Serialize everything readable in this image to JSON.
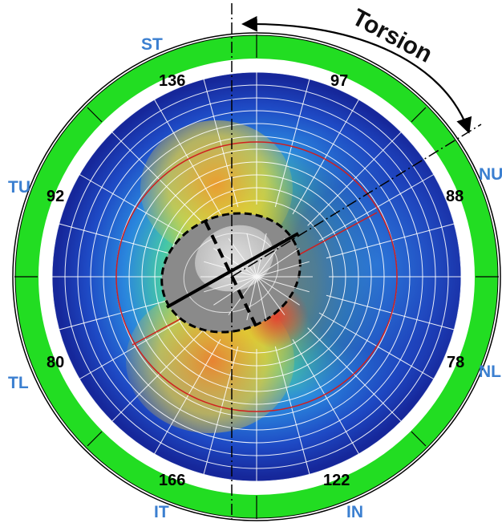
{
  "annotation": {
    "label": "Torsion"
  },
  "quadrants": [
    {
      "id": "ST",
      "label": "ST",
      "value": "136"
    },
    {
      "id": "TU",
      "label": "TU",
      "value": "92"
    },
    {
      "id": "TL",
      "label": "TL",
      "value": "80"
    },
    {
      "id": "IT",
      "label": "IT",
      "value": "166"
    },
    {
      "id": "IN",
      "label": "IN",
      "value": "122"
    },
    {
      "id": "NL",
      "label": "NL",
      "value": "78"
    },
    {
      "id": "NU",
      "label": "NU",
      "value": "88"
    },
    {
      "id": "SN",
      "label": "",
      "value": "97"
    }
  ],
  "colors": {
    "outer_ring": "#22dd22",
    "map_low": "#1a2fb0",
    "map_mid": "#2ea0e6",
    "map_green": "#5ccf5c",
    "map_yellow": "#f0e030",
    "map_orange": "#f39a2a",
    "map_red": "#e83e2e",
    "disc": "#8a8a8a",
    "cup": "#c9c9c9",
    "label_blue": "#3b7fd0"
  }
}
